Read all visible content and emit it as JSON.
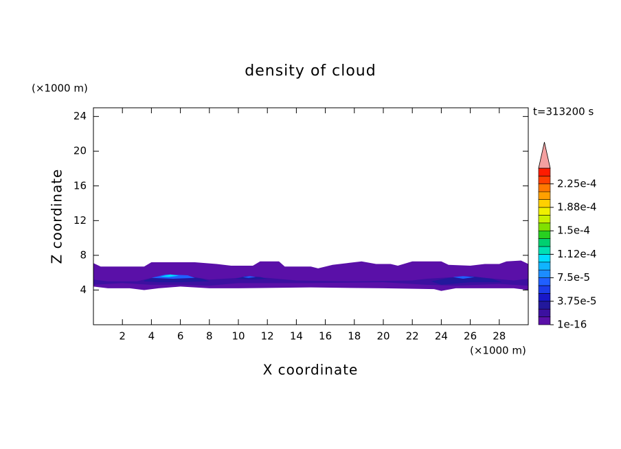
{
  "chart_data": {
    "type": "contour",
    "title": "density of cloud",
    "time_label": "t=313200 s",
    "x_label": "X coordinate",
    "y_label": "Z coordinate",
    "x_unit": "(×1000 m)",
    "y_unit": "(×1000 m)",
    "xlim": [
      0,
      30
    ],
    "ylim": [
      0,
      25
    ],
    "xticks": [
      2,
      4,
      6,
      8,
      10,
      12,
      14,
      16,
      18,
      20,
      22,
      24,
      26,
      28
    ],
    "yticks": [
      4,
      8,
      12,
      16,
      20,
      24
    ],
    "colorbar": {
      "levels": [
        1e-16,
        1.25e-05,
        2.5e-05,
        3.75e-05,
        5e-05,
        6.25e-05,
        7.5e-05,
        8.75e-05,
        0.0001,
        0.0001125,
        0.000125,
        0.0001375,
        0.00015,
        0.0001625,
        0.000175,
        0.0001875,
        0.0002,
        0.0002125,
        0.000225,
        0.0002375,
        0.00025
      ],
      "colors": [
        "#5a10a8",
        "#3c10a0",
        "#22189c",
        "#1818c8",
        "#1c3ce8",
        "#2060ff",
        "#1c8cff",
        "#10b4ff",
        "#00dcff",
        "#00e0b4",
        "#00d070",
        "#28d020",
        "#80e000",
        "#c8f000",
        "#f0f000",
        "#ffd000",
        "#ffa000",
        "#ff7800",
        "#ff4000",
        "#ff1c00"
      ],
      "extend_color": "#f4a0a0",
      "ticks": [
        1e-16,
        {
          "value": 3.75e-05,
          "label": "3.75e-5"
        },
        {
          "value": 7.5e-05,
          "label": "7.5e-5"
        },
        {
          "value": 0.0001125,
          "label": "1.12e-4"
        },
        {
          "value": 0.00015,
          "label": "1.5e-4"
        },
        {
          "value": 0.0001875,
          "label": "1.88e-4"
        },
        {
          "value": 0.000225,
          "label": "2.25e-4"
        }
      ]
    },
    "regions": [
      {
        "level": 1e-16,
        "x": [
          0,
          0.5,
          2,
          3.5,
          4,
          7,
          8.5,
          9.5,
          11,
          11.5,
          12.8,
          13.2,
          15,
          15.5,
          16.5,
          17.5,
          18.5,
          19.5,
          20.5,
          21,
          22,
          24,
          24.5,
          26,
          27,
          28,
          28.5,
          29.5,
          30,
          30,
          29,
          27,
          25,
          24,
          23.5,
          20,
          15,
          10,
          8,
          6,
          4.5,
          3.5,
          2.5,
          1,
          0
        ],
        "z": [
          7.1,
          6.7,
          6.7,
          6.7,
          7.2,
          7.2,
          7.0,
          6.8,
          6.8,
          7.3,
          7.3,
          6.7,
          6.7,
          6.5,
          6.9,
          7.1,
          7.3,
          7.0,
          7.0,
          6.8,
          7.3,
          7.3,
          6.9,
          6.8,
          7.0,
          7.0,
          7.3,
          7.4,
          7.0,
          4.0,
          4.2,
          4.2,
          4.2,
          3.9,
          4.1,
          4.2,
          4.3,
          4.2,
          4.2,
          4.4,
          4.2,
          4.0,
          4.2,
          4.2,
          4.4
        ]
      },
      {
        "level": 1.25e-05,
        "x": [
          0,
          1,
          3,
          4,
          5,
          6.5,
          8,
          10,
          12,
          14,
          18,
          22,
          23,
          25,
          27,
          29,
          30,
          30,
          28,
          25,
          23,
          20,
          15,
          10,
          8,
          6,
          4,
          2,
          0
        ],
        "z": [
          5.2,
          5.0,
          5.0,
          5.4,
          5.7,
          5.6,
          5.2,
          5.4,
          5.4,
          5.1,
          5.0,
          5.1,
          5.3,
          5.5,
          5.4,
          5.1,
          5.3,
          4.5,
          4.7,
          4.5,
          4.6,
          4.9,
          4.8,
          4.8,
          4.5,
          4.6,
          4.6,
          4.8,
          4.6
        ]
      },
      {
        "level": 2.5e-05,
        "x": [
          3.5,
          4.5,
          6,
          7.5,
          8,
          6,
          4.5,
          3.5
        ],
        "z": [
          5.1,
          5.6,
          5.7,
          5.3,
          5.0,
          4.9,
          4.9,
          5.0
        ]
      },
      {
        "level": 2.5e-05,
        "x": [
          9.8,
          10.5,
          11.5,
          12,
          11,
          9.8
        ],
        "z": [
          5.3,
          5.6,
          5.5,
          5.3,
          5.2,
          5.3
        ]
      },
      {
        "level": 2.5e-05,
        "x": [
          23.3,
          24.5,
          26,
          27.5,
          28.2,
          26,
          24,
          23.3
        ],
        "z": [
          5.0,
          5.4,
          5.6,
          5.3,
          4.9,
          4.9,
          4.6,
          5.0
        ]
      },
      {
        "level": 6.25e-05,
        "x": [
          4,
          5,
          6.5,
          7,
          5.5,
          4
        ],
        "z": [
          5.4,
          5.8,
          5.7,
          5.4,
          5.3,
          5.4
        ]
      },
      {
        "level": 6.25e-05,
        "x": [
          10.3,
          10.8,
          11.2,
          10.7,
          10.3
        ],
        "z": [
          5.5,
          5.6,
          5.5,
          5.4,
          5.5
        ]
      },
      {
        "level": 6.25e-05,
        "x": [
          24.8,
          25.5,
          26.3,
          25.5,
          24.8
        ],
        "z": [
          5.5,
          5.6,
          5.5,
          5.3,
          5.5
        ]
      },
      {
        "level": 0.0001,
        "x": [
          4.6,
          5.3,
          5.9,
          5.2,
          4.6
        ],
        "z": [
          5.55,
          5.8,
          5.65,
          5.5,
          5.55
        ]
      }
    ]
  }
}
